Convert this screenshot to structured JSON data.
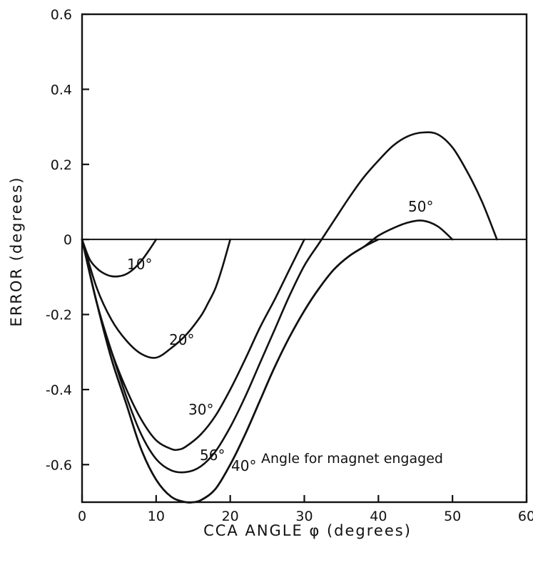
{
  "chart_data": {
    "type": "line",
    "title": "",
    "xlabel": "CCA ANGLE φ (degrees)",
    "ylabel": "ERROR (degrees)",
    "xlim": [
      0,
      60
    ],
    "ylim": [
      -0.7,
      0.6
    ],
    "x_ticks": [
      "0",
      "10",
      "20",
      "30",
      "40",
      "50",
      "60"
    ],
    "y_ticks": [
      "0.6",
      "0.4",
      "0.2",
      "0",
      "-0.2",
      "-0.4",
      "-0.6"
    ],
    "grid": false,
    "zero_line": true,
    "annotation": "Angle for magnet engaged",
    "series": [
      {
        "name": "10°",
        "x": [
          0,
          1,
          2,
          3,
          4,
          5,
          6,
          7,
          8,
          9,
          10
        ],
        "y": [
          0,
          -0.052,
          -0.077,
          -0.091,
          -0.098,
          -0.098,
          -0.092,
          -0.078,
          -0.057,
          -0.03,
          0
        ]
      },
      {
        "name": "20°",
        "x": [
          0,
          2,
          4,
          6,
          8,
          10,
          12,
          14,
          16,
          17,
          18,
          19,
          20
        ],
        "y": [
          0,
          -0.13,
          -0.215,
          -0.27,
          -0.305,
          -0.315,
          -0.29,
          -0.255,
          -0.205,
          -0.17,
          -0.13,
          -0.07,
          0
        ]
      },
      {
        "name": "30°",
        "x": [
          0,
          2,
          4,
          6,
          8,
          10,
          12,
          13,
          14,
          16,
          18,
          20,
          22,
          24,
          26,
          28,
          30
        ],
        "y": [
          0,
          -0.17,
          -0.3,
          -0.4,
          -0.48,
          -0.535,
          -0.558,
          -0.56,
          -0.552,
          -0.52,
          -0.47,
          -0.4,
          -0.32,
          -0.235,
          -0.16,
          -0.08,
          0
        ]
      },
      {
        "name": "56°",
        "x": [
          0,
          2,
          4,
          6,
          8,
          10,
          12,
          14,
          16,
          18,
          20,
          22,
          24,
          26,
          28,
          30,
          32,
          34,
          36,
          38,
          40,
          42,
          44,
          46,
          48,
          50,
          52,
          54,
          56
        ],
        "y": [
          0,
          -0.17,
          -0.3,
          -0.42,
          -0.52,
          -0.585,
          -0.615,
          -0.62,
          -0.605,
          -0.565,
          -0.5,
          -0.42,
          -0.33,
          -0.24,
          -0.15,
          -0.07,
          -0.01,
          0.05,
          0.11,
          0.165,
          0.21,
          0.25,
          0.275,
          0.285,
          0.28,
          0.245,
          0.18,
          0.1,
          0
        ]
      },
      {
        "name": "40°",
        "x": [
          0,
          2,
          4,
          6,
          8,
          10,
          12,
          14,
          15,
          16,
          18,
          20,
          22,
          24,
          26,
          28,
          30,
          32,
          34,
          36,
          38,
          40
        ],
        "y": [
          0,
          -0.17,
          -0.32,
          -0.44,
          -0.56,
          -0.64,
          -0.685,
          -0.7,
          -0.7,
          -0.695,
          -0.665,
          -0.6,
          -0.52,
          -0.43,
          -0.34,
          -0.26,
          -0.19,
          -0.13,
          -0.08,
          -0.045,
          -0.02,
          0
        ]
      },
      {
        "name": "50°",
        "x": [
          0,
          2,
          4,
          6,
          8,
          10,
          12,
          14,
          16,
          18,
          20,
          22,
          24,
          26,
          28,
          30,
          32,
          34,
          36,
          38,
          40,
          42,
          44,
          46,
          48,
          50
        ],
        "y": [
          0,
          -0.17,
          -0.32,
          -0.44,
          -0.56,
          -0.64,
          -0.685,
          -0.7,
          -0.695,
          -0.665,
          -0.6,
          -0.52,
          -0.43,
          -0.34,
          -0.26,
          -0.19,
          -0.13,
          -0.08,
          -0.045,
          -0.02,
          0.01,
          0.03,
          0.045,
          0.05,
          0.035,
          0
        ]
      }
    ]
  }
}
